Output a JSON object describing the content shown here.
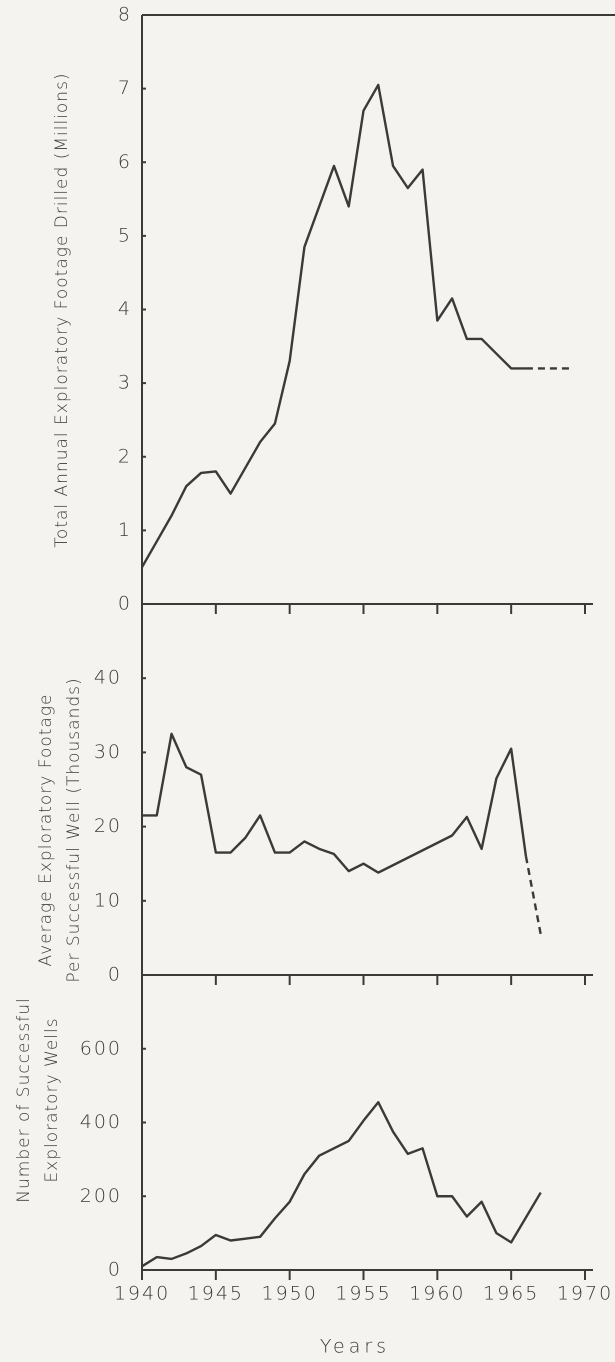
{
  "chart_data": [
    {
      "type": "line",
      "ylabel": [
        "Total Annual Exploratory Footage Drilled (Millions)"
      ],
      "xlim": [
        1940,
        1970
      ],
      "xticks": [
        1940,
        1945,
        1950,
        1955,
        1960,
        1965,
        1970
      ],
      "ylim": [
        0,
        8
      ],
      "yticks": [
        0,
        1,
        2,
        3,
        4,
        5,
        6,
        7,
        8
      ],
      "series": [
        {
          "color": "#3a3a3a",
          "x": [
            1940,
            1941,
            1942,
            1943,
            1944,
            1945,
            1946,
            1947,
            1948,
            1949,
            1950,
            1951,
            1952,
            1953,
            1954,
            1955,
            1956,
            1957,
            1958,
            1959,
            1960,
            1961,
            1962,
            1963,
            1964,
            1965,
            1966
          ],
          "values": [
            0.5,
            0.85,
            1.2,
            1.6,
            1.78,
            1.8,
            1.5,
            1.85,
            2.2,
            2.45,
            3.3,
            4.85,
            5.4,
            5.95,
            5.4,
            6.7,
            7.05,
            5.95,
            5.65,
            5.9,
            3.85,
            4.15,
            3.6,
            3.6,
            3.4,
            3.2,
            3.2
          ]
        },
        {
          "color": "#3a3a3a",
          "dashed": true,
          "x": [
            1966,
            1969
          ],
          "values": [
            3.2,
            3.2
          ]
        }
      ]
    },
    {
      "type": "line",
      "ylabel": [
        "Average Exploratory Footage",
        "Per Successful Well (Thousands)"
      ],
      "xlim": [
        1940,
        1970
      ],
      "xticks": [
        1940,
        1945,
        1950,
        1955,
        1960,
        1965,
        1970
      ],
      "ylim": [
        0,
        50
      ],
      "yticks": [
        0,
        10,
        20,
        30,
        40
      ],
      "series": [
        {
          "color": "#3a3a3a",
          "x": [
            1940,
            1941,
            1942,
            1943,
            1944,
            1945,
            1946,
            1947,
            1948,
            1949,
            1950,
            1951,
            1952,
            1953,
            1954,
            1955,
            1956,
            1961,
            1962,
            1963,
            1964,
            1965,
            1966
          ],
          "values": [
            21.5,
            21.5,
            32.5,
            28,
            27,
            16.5,
            16.5,
            18.5,
            21.5,
            16.5,
            16.5,
            18,
            17,
            16.3,
            14,
            15,
            13.8,
            18.8,
            21.3,
            17,
            26.5,
            30.5,
            16
          ]
        },
        {
          "color": "#3a3a3a",
          "dashed": true,
          "x": [
            1966,
            1967
          ],
          "values": [
            16,
            5.5
          ]
        }
      ]
    },
    {
      "type": "line",
      "ylabel": [
        "Number of Successful",
        "Exploratory Wells"
      ],
      "xlabel": "Years",
      "xlim": [
        1940,
        1970
      ],
      "xticks": [
        1940,
        1945,
        1950,
        1955,
        1960,
        1965,
        1970
      ],
      "ylim": [
        0,
        800
      ],
      "yticks": [
        0,
        200,
        400,
        600
      ],
      "series": [
        {
          "color": "#3a3a3a",
          "x": [
            1940,
            1941,
            1942,
            1943,
            1944,
            1945,
            1946,
            1947,
            1948,
            1949,
            1950,
            1951,
            1952,
            1953,
            1954,
            1955,
            1956,
            1957,
            1958,
            1959,
            1960,
            1961,
            1962,
            1963,
            1964,
            1965,
            1967
          ],
          "values": [
            10,
            35,
            30,
            45,
            65,
            95,
            80,
            85,
            90,
            140,
            185,
            260,
            310,
            330,
            350,
            405,
            455,
            375,
            315,
            330,
            200,
            200,
            145,
            185,
            100,
            75,
            210
          ]
        }
      ]
    }
  ]
}
